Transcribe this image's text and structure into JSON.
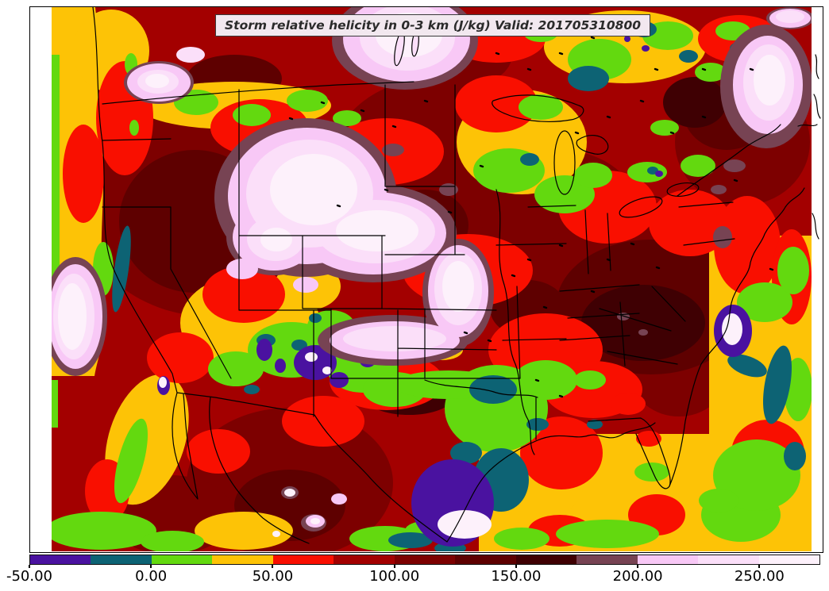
{
  "title": {
    "text": "Storm relative helicity in 0-3 km (J/kg) Valid: 201705310800"
  },
  "colorbar": {
    "orientation": "horizontal",
    "tick_labels": [
      "-50.00",
      "0.00",
      "50.00",
      "100.00",
      "150.00",
      "200.00",
      "250.00"
    ],
    "levels": [
      {
        "min": -50,
        "max": -25,
        "color": "#4A12A0"
      },
      {
        "min": -25,
        "max": 0,
        "color": "#0D6374"
      },
      {
        "min": 0,
        "max": 25,
        "color": "#63D90F"
      },
      {
        "min": 25,
        "max": 50,
        "color": "#FDC306"
      },
      {
        "min": 50,
        "max": 75,
        "color": "#F90F00"
      },
      {
        "min": 75,
        "max": 100,
        "color": "#A30000"
      },
      {
        "min": 100,
        "max": 125,
        "color": "#7D0000"
      },
      {
        "min": 125,
        "max": 150,
        "color": "#5E0000"
      },
      {
        "min": 150,
        "max": 175,
        "color": "#3F0003"
      },
      {
        "min": 175,
        "max": 200,
        "color": "#774353"
      },
      {
        "min": 200,
        "max": 225,
        "color": "#F8C8F6"
      },
      {
        "min": 225,
        "max": 250,
        "color": "#FBDFF9"
      },
      {
        "min": 250,
        "max": 275,
        "color": "#FDF1FB"
      }
    ]
  },
  "chart_data": {
    "type": "heatmap",
    "title": "Storm relative helicity in 0-3 km (J/kg) Valid: 201705310800",
    "variable": "Storm relative helicity in 0-3 km",
    "units": "J/kg",
    "valid": "201705310800",
    "region": "Contiguous United States with adjacent Canada, Mexico, Pacific, Gulf of Mexico and western Atlantic",
    "colorbar_ticks": [
      -50,
      0,
      50,
      100,
      150,
      200,
      250
    ],
    "value_range": [
      -50,
      275
    ],
    "level_step": 25,
    "notable_features": [
      "Broad 75-175 J/kg (dark red to maroon) field covering most of the CONUS",
      "Maxima above 200 J/kg (pink/white) over Montana-Wyoming-Nebraska, central Kansas, southern Colorado-Kansas border, Manitoba lakes region, Maine/New Brunswick, Washington state, central Idaho and offshore California",
      "Negative values (purple/teal) over south Texas, New Mexico, the Four Corners and off the Carolina coast",
      "25-50 J/kg (gold) band along the Pacific coast, over the Gulf of Mexico and the western Atlantic",
      "0-25 J/kg (green) patches over the Great Basin, upper Midwest, east Texas and southern Ontario/Quebec"
    ]
  },
  "frame": {
    "border_color": "#000000",
    "background": "#FFFFFF"
  }
}
